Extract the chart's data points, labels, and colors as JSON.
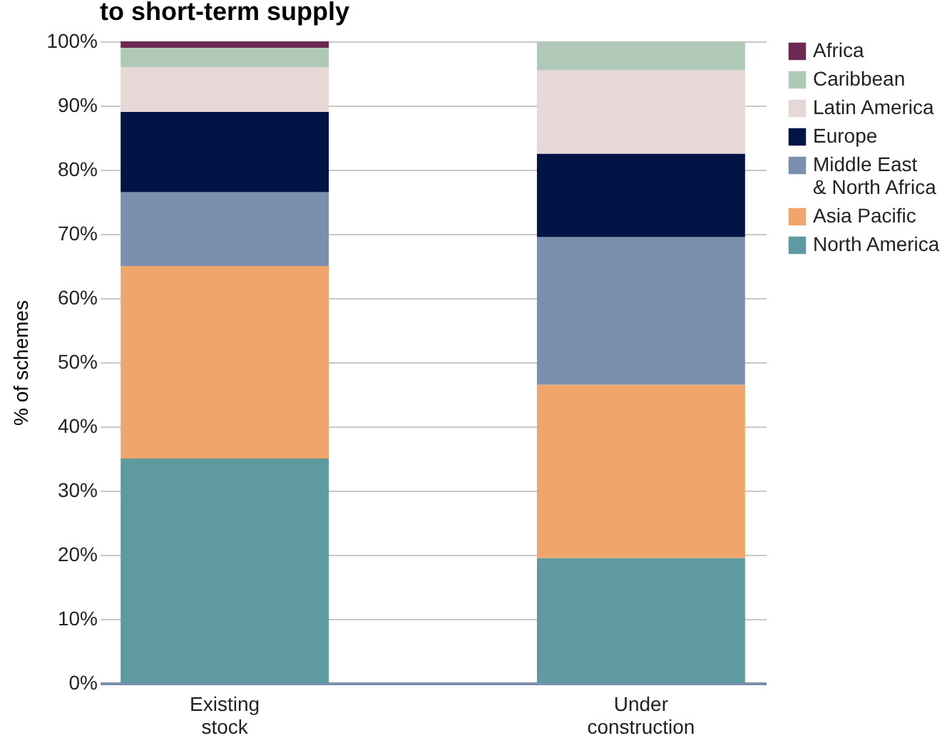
{
  "chart_data": {
    "type": "bar",
    "title": "to short-term supply",
    "ylabel": "% of schemes",
    "categories": [
      "Existing stock",
      "Under construction"
    ],
    "stacked": true,
    "series": [
      {
        "name": "North America",
        "color": "#5e9aa0",
        "values": [
          35,
          19.5
        ]
      },
      {
        "name": "Asia Pacific",
        "color": "#f0a56a",
        "values": [
          30,
          27
        ]
      },
      {
        "name": "Middle East & North Africa",
        "color": "#7a90ae",
        "values": [
          11.5,
          23
        ]
      },
      {
        "name": "Europe",
        "color": "#001446",
        "values": [
          12.5,
          13
        ]
      },
      {
        "name": "Latin America",
        "color": "#e6d8d6",
        "values": [
          7,
          13
        ]
      },
      {
        "name": "Caribbean",
        "color": "#b0c8b8",
        "values": [
          3,
          4.5
        ]
      },
      {
        "name": "Africa",
        "color": "#6b2a52",
        "values": [
          1,
          0
        ]
      }
    ],
    "ylim": [
      0,
      100
    ],
    "yticks": [
      {
        "value": 0,
        "label": "0%"
      },
      {
        "value": 10,
        "label": "10%"
      },
      {
        "value": 20,
        "label": "20%"
      },
      {
        "value": 30,
        "label": "30%"
      },
      {
        "value": 40,
        "label": "40%"
      },
      {
        "value": 50,
        "label": "50%"
      },
      {
        "value": 60,
        "label": "60%"
      },
      {
        "value": 70,
        "label": "70%"
      },
      {
        "value": 80,
        "label": "80%"
      },
      {
        "value": 90,
        "label": "90%"
      },
      {
        "value": 100,
        "label": "100%"
      }
    ],
    "grid": "y",
    "legend": "top right"
  }
}
